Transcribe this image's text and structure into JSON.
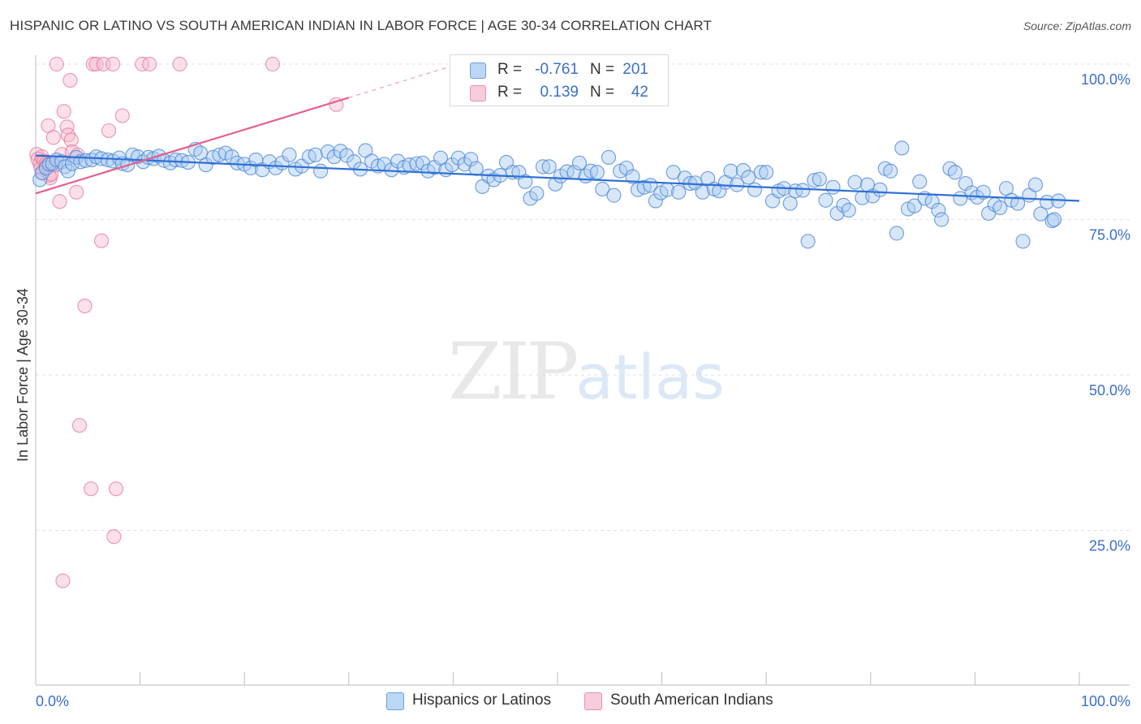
{
  "header": {
    "title": "HISPANIC OR LATINO VS SOUTH AMERICAN INDIAN IN LABOR FORCE | AGE 30-34 CORRELATION CHART",
    "source": "Source: ZipAtlas.com"
  },
  "watermark": {
    "zip": "ZIP",
    "atlas": "atlas"
  },
  "legend": {
    "rows": [
      {
        "r_label": "R =",
        "r_value": "-0.761",
        "n_label": "N =",
        "n_value": "201",
        "color": "#9dc3ef"
      },
      {
        "r_label": "R =",
        "r_value": "0.139",
        "n_label": "N =",
        "n_value": "42",
        "color": "#f5b8cb"
      }
    ]
  },
  "bottom_legend": {
    "items": [
      {
        "label": "Hispanics or Latinos",
        "color": "#9dc3ef"
      },
      {
        "label": "South American Indians",
        "color": "#f5b8cb"
      }
    ]
  },
  "chart_data": {
    "type": "scatter",
    "title": "HISPANIC OR LATINO VS SOUTH AMERICAN INDIAN IN LABOR FORCE | AGE 30-34 CORRELATION CHART",
    "xlabel": "",
    "ylabel": "In Labor Force | Age 30-34",
    "xlim": [
      0,
      100
    ],
    "ylim": [
      0,
      102
    ],
    "x_tick_labels": [
      "0.0%",
      "100.0%"
    ],
    "y_tick_labels": [
      "25.0%",
      "50.0%",
      "75.0%",
      "100.0%"
    ],
    "y_ticks": [
      25,
      50,
      75,
      100
    ],
    "grid": true,
    "legend_position": "top-center",
    "colors": {
      "blue": "#4a86d8",
      "blue_fill": "#a9c9f0",
      "pink": "#e8729b",
      "pink_fill": "#f5bccd"
    },
    "series": [
      {
        "name": "Hispanics or Latinos",
        "trend": {
          "x": [
            0,
            100
          ],
          "y": [
            85.3,
            78.0
          ]
        },
        "points": [
          [
            0.4,
            81.4
          ],
          [
            0.6,
            82.5
          ],
          [
            1.0,
            83.3
          ],
          [
            1.3,
            83.9
          ],
          [
            1.6,
            84.0
          ],
          [
            2.0,
            84.6
          ],
          [
            2.5,
            84.3
          ],
          [
            2.8,
            83.5
          ],
          [
            3.1,
            82.8
          ],
          [
            3.5,
            84.0
          ],
          [
            3.9,
            85.0
          ],
          [
            4.3,
            84.3
          ],
          [
            4.8,
            84.5
          ],
          [
            5.4,
            84.6
          ],
          [
            5.8,
            85.1
          ],
          [
            6.3,
            84.8
          ],
          [
            6.9,
            84.6
          ],
          [
            7.4,
            84.4
          ],
          [
            8.0,
            84.9
          ],
          [
            8.3,
            84.0
          ],
          [
            8.8,
            83.8
          ],
          [
            9.3,
            85.4
          ],
          [
            9.8,
            85.1
          ],
          [
            10.3,
            84.3
          ],
          [
            10.8,
            85.0
          ],
          [
            11.3,
            84.8
          ],
          [
            11.8,
            85.2
          ],
          [
            12.3,
            84.5
          ],
          [
            12.9,
            84.1
          ],
          [
            13.4,
            84.6
          ],
          [
            14.0,
            84.5
          ],
          [
            14.6,
            84.2
          ],
          [
            15.3,
            86.3
          ],
          [
            15.8,
            85.7
          ],
          [
            16.3,
            83.8
          ],
          [
            17.0,
            85.0
          ],
          [
            17.6,
            85.4
          ],
          [
            18.2,
            85.7
          ],
          [
            18.8,
            85.1
          ],
          [
            19.3,
            84.1
          ],
          [
            20.0,
            83.9
          ],
          [
            20.6,
            83.3
          ],
          [
            21.1,
            84.6
          ],
          [
            21.7,
            83.0
          ],
          [
            22.4,
            84.3
          ],
          [
            23.0,
            83.3
          ],
          [
            23.6,
            84.1
          ],
          [
            24.3,
            85.4
          ],
          [
            24.9,
            83.1
          ],
          [
            25.5,
            83.6
          ],
          [
            26.2,
            85.1
          ],
          [
            26.8,
            85.4
          ],
          [
            27.3,
            82.8
          ],
          [
            28.0,
            85.9
          ],
          [
            28.6,
            85.1
          ],
          [
            29.2,
            86.0
          ],
          [
            29.8,
            85.3
          ],
          [
            30.5,
            84.3
          ],
          [
            31.1,
            83.1
          ],
          [
            31.6,
            86.1
          ],
          [
            32.2,
            84.4
          ],
          [
            32.8,
            83.6
          ],
          [
            33.4,
            83.9
          ],
          [
            34.1,
            83.0
          ],
          [
            34.7,
            84.4
          ],
          [
            35.3,
            83.4
          ],
          [
            35.8,
            83.8
          ],
          [
            36.5,
            84.0
          ],
          [
            37.1,
            84.1
          ],
          [
            37.6,
            82.8
          ],
          [
            38.2,
            83.4
          ],
          [
            38.8,
            84.9
          ],
          [
            39.3,
            83.0
          ],
          [
            39.9,
            83.8
          ],
          [
            40.5,
            84.9
          ],
          [
            41.1,
            83.9
          ],
          [
            41.7,
            84.7
          ],
          [
            42.2,
            83.2
          ],
          [
            42.8,
            80.3
          ],
          [
            43.4,
            82.0
          ],
          [
            43.9,
            81.4
          ],
          [
            44.5,
            82.1
          ],
          [
            45.1,
            84.2
          ],
          [
            45.7,
            82.6
          ],
          [
            46.3,
            82.6
          ],
          [
            46.9,
            81.1
          ],
          [
            47.4,
            78.4
          ],
          [
            48.0,
            79.2
          ],
          [
            48.6,
            83.5
          ],
          [
            49.2,
            83.5
          ],
          [
            49.8,
            80.7
          ],
          [
            50.3,
            82.0
          ],
          [
            50.9,
            82.7
          ],
          [
            51.6,
            82.6
          ],
          [
            52.1,
            84.1
          ],
          [
            52.7,
            82.0
          ],
          [
            53.2,
            82.8
          ],
          [
            53.8,
            82.6
          ],
          [
            54.3,
            79.9
          ],
          [
            54.9,
            85.0
          ],
          [
            55.4,
            78.9
          ],
          [
            56.0,
            82.8
          ],
          [
            56.6,
            83.3
          ],
          [
            57.2,
            81.9
          ],
          [
            57.7,
            79.8
          ],
          [
            58.3,
            80.2
          ],
          [
            58.9,
            80.5
          ],
          [
            59.4,
            78.0
          ],
          [
            59.9,
            79.3
          ],
          [
            60.5,
            79.8
          ],
          [
            61.1,
            82.6
          ],
          [
            61.6,
            79.4
          ],
          [
            62.2,
            81.7
          ],
          [
            62.7,
            80.8
          ],
          [
            63.2,
            80.9
          ],
          [
            63.9,
            79.4
          ],
          [
            64.4,
            81.6
          ],
          [
            65.0,
            79.9
          ],
          [
            65.5,
            79.6
          ],
          [
            66.1,
            81.0
          ],
          [
            66.6,
            82.8
          ],
          [
            67.2,
            80.6
          ],
          [
            67.8,
            82.9
          ],
          [
            68.3,
            81.8
          ],
          [
            68.9,
            79.8
          ],
          [
            69.5,
            82.6
          ],
          [
            70.0,
            82.6
          ],
          [
            70.6,
            78.0
          ],
          [
            71.2,
            79.6
          ],
          [
            71.7,
            80.0
          ],
          [
            72.3,
            77.6
          ],
          [
            72.8,
            79.6
          ],
          [
            73.5,
            79.7
          ],
          [
            74.0,
            71.5
          ],
          [
            74.6,
            81.3
          ],
          [
            75.1,
            81.5
          ],
          [
            75.7,
            78.1
          ],
          [
            76.4,
            80.2
          ],
          [
            76.8,
            76.0
          ],
          [
            77.4,
            77.3
          ],
          [
            77.9,
            76.5
          ],
          [
            78.5,
            81.0
          ],
          [
            79.2,
            78.5
          ],
          [
            79.7,
            80.6
          ],
          [
            80.2,
            78.8
          ],
          [
            80.9,
            79.8
          ],
          [
            81.4,
            83.2
          ],
          [
            81.9,
            82.8
          ],
          [
            82.5,
            72.8
          ],
          [
            83.0,
            86.5
          ],
          [
            83.6,
            76.7
          ],
          [
            84.2,
            77.2
          ],
          [
            84.7,
            81.1
          ],
          [
            85.2,
            78.4
          ],
          [
            85.9,
            77.9
          ],
          [
            86.5,
            76.5
          ],
          [
            86.8,
            75.0
          ],
          [
            87.6,
            83.2
          ],
          [
            88.1,
            82.6
          ],
          [
            88.6,
            78.4
          ],
          [
            89.1,
            80.8
          ],
          [
            89.7,
            79.3
          ],
          [
            90.2,
            78.6
          ],
          [
            90.8,
            79.4
          ],
          [
            91.3,
            76.0
          ],
          [
            91.9,
            77.4
          ],
          [
            92.4,
            76.9
          ],
          [
            93.0,
            80.0
          ],
          [
            93.5,
            78.1
          ],
          [
            94.1,
            77.6
          ],
          [
            94.6,
            71.5
          ],
          [
            95.2,
            78.9
          ],
          [
            95.8,
            80.6
          ],
          [
            96.3,
            75.9
          ],
          [
            96.9,
            77.8
          ],
          [
            97.4,
            74.8
          ],
          [
            97.6,
            75.0
          ],
          [
            98.0,
            78.0
          ]
        ]
      },
      {
        "name": "South American Indians",
        "trend": {
          "x": [
            0,
            30
          ],
          "y": [
            79.2,
            94.6
          ]
        },
        "trend_extension": {
          "x": [
            30,
            39.5
          ],
          "y": [
            94.6,
            99.5
          ]
        },
        "points": [
          [
            0.1,
            85.5
          ],
          [
            0.2,
            84.7
          ],
          [
            0.4,
            84.0
          ],
          [
            0.5,
            83.3
          ],
          [
            0.6,
            85.1
          ],
          [
            0.7,
            82.5
          ],
          [
            0.8,
            84.4
          ],
          [
            1.0,
            84.0
          ],
          [
            1.1,
            83.7
          ],
          [
            1.2,
            90.1
          ],
          [
            1.3,
            82.1
          ],
          [
            1.4,
            81.7
          ],
          [
            1.5,
            82.3
          ],
          [
            1.7,
            88.2
          ],
          [
            1.9,
            83.8
          ],
          [
            2.0,
            100.0
          ],
          [
            2.3,
            77.9
          ],
          [
            2.5,
            85.5
          ],
          [
            2.7,
            92.4
          ],
          [
            3.0,
            89.9
          ],
          [
            3.1,
            88.6
          ],
          [
            3.3,
            97.4
          ],
          [
            3.4,
            87.8
          ],
          [
            3.9,
            79.4
          ],
          [
            3.5,
            85.9
          ],
          [
            4.0,
            85.4
          ],
          [
            4.2,
            41.9
          ],
          [
            4.7,
            61.1
          ],
          [
            5.5,
            100.0
          ],
          [
            5.3,
            31.7
          ],
          [
            5.8,
            100.0
          ],
          [
            6.3,
            71.6
          ],
          [
            6.5,
            100.0
          ],
          [
            7.0,
            89.3
          ],
          [
            7.4,
            100.0
          ],
          [
            7.5,
            24.0
          ],
          [
            7.7,
            31.7
          ],
          [
            8.3,
            91.7
          ],
          [
            10.2,
            100.0
          ],
          [
            10.9,
            100.0
          ],
          [
            13.8,
            100.0
          ],
          [
            22.7,
            100.0
          ],
          [
            28.8,
            93.5
          ],
          [
            2.6,
            16.9
          ]
        ]
      }
    ]
  }
}
